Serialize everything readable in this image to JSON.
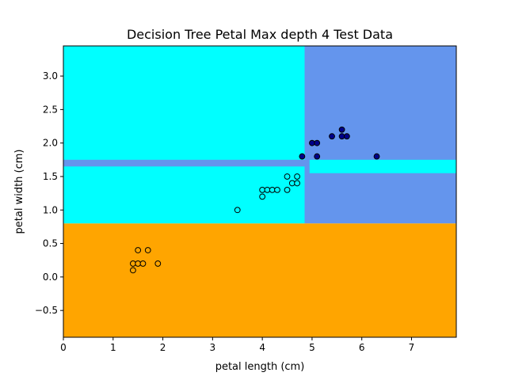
{
  "chart_data": {
    "type": "scatter",
    "title": "Decision Tree Petal Max depth 4 Test Data",
    "xlabel": "petal length (cm)",
    "ylabel": "petal width (cm)",
    "xlim": [
      0,
      7.9
    ],
    "ylim": [
      -0.9,
      3.45
    ],
    "xticks": [
      0,
      1,
      2,
      3,
      4,
      5,
      6,
      7
    ],
    "xtick_labels": [
      "0",
      "1",
      "2",
      "3",
      "4",
      "5",
      "6",
      "7"
    ],
    "yticks": [
      -0.5,
      0.0,
      0.5,
      1.0,
      1.5,
      2.0,
      2.5,
      3.0
    ],
    "ytick_labels": [
      "−0.5",
      "0.0",
      "0.5",
      "1.0",
      "1.5",
      "2.0",
      "2.5",
      "3.0"
    ],
    "grid": false,
    "regions": [
      {
        "class": 0,
        "color": "#FFA500",
        "x0": 0,
        "x1": 7.9,
        "y0": -0.9,
        "y1": 0.8
      },
      {
        "class": 1,
        "color": "#00FFFF",
        "x0": 0,
        "x1": 4.85,
        "y0": 0.8,
        "y1": 3.45
      },
      {
        "class": 2,
        "color": "#6495ED",
        "x0": 4.85,
        "x1": 7.9,
        "y0": 0.8,
        "y1": 3.45
      },
      {
        "class": 2,
        "color": "#6495ED",
        "x0": 0,
        "x1": 4.85,
        "y0": 1.65,
        "y1": 1.75
      },
      {
        "class": 1,
        "color": "#00FFFF",
        "x0": 4.95,
        "x1": 7.9,
        "y0": 1.55,
        "y1": 1.75
      }
    ],
    "series": [
      {
        "class": 0,
        "color": "#FFA500",
        "points": [
          [
            1.4,
            0.1
          ],
          [
            1.4,
            0.2
          ],
          [
            1.5,
            0.2
          ],
          [
            1.6,
            0.2
          ],
          [
            1.9,
            0.2
          ],
          [
            1.5,
            0.4
          ],
          [
            1.7,
            0.4
          ]
        ]
      },
      {
        "class": 1,
        "color": "#00FFFF",
        "points": [
          [
            3.5,
            1.0
          ],
          [
            4.0,
            1.2
          ],
          [
            4.0,
            1.3
          ],
          [
            4.1,
            1.3
          ],
          [
            4.2,
            1.3
          ],
          [
            4.3,
            1.3
          ],
          [
            4.5,
            1.3
          ],
          [
            4.6,
            1.4
          ],
          [
            4.7,
            1.4
          ],
          [
            4.5,
            1.5
          ],
          [
            4.7,
            1.5
          ]
        ]
      },
      {
        "class": 2,
        "color": "#00008B",
        "points": [
          [
            4.8,
            1.8
          ],
          [
            5.1,
            1.8
          ],
          [
            6.3,
            1.8
          ],
          [
            5.0,
            2.0
          ],
          [
            5.1,
            2.0
          ],
          [
            5.4,
            2.1
          ],
          [
            5.6,
            2.1
          ],
          [
            5.7,
            2.1
          ],
          [
            5.6,
            2.2
          ]
        ]
      }
    ]
  }
}
